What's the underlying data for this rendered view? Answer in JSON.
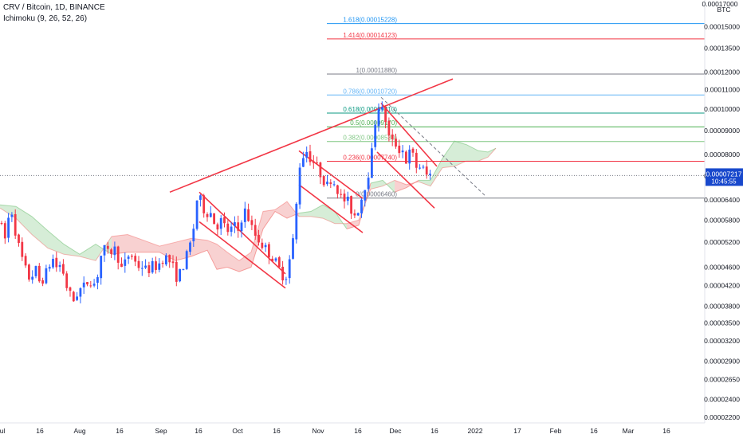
{
  "header": {
    "symbol": "CRV / Bitcoin, 1D, BINANCE",
    "indicator": "Ichimoku (9, 26, 52, 26)"
  },
  "price_scale": {
    "currency": "BTC",
    "top_label": "0.00017000",
    "current_price": "0.00007217",
    "countdown": "10:45:55",
    "current_price_color": "#1848cc"
  },
  "colors": {
    "up_candle": "#2962ff",
    "down_candle": "#f23645",
    "trendline": "#f23645",
    "cloud_bull": "#a5d6a7",
    "cloud_bear": "#ef9a9a"
  },
  "fib_levels": [
    {
      "label": "1.618(0.00015228)",
      "value": 0.00015228,
      "color": "#2196f3"
    },
    {
      "label": "1.414(0.00014123)",
      "value": 0.00014123,
      "color": "#f23645"
    },
    {
      "label": "1(0.00011880)",
      "value": 0.0001188,
      "color": "#787b86"
    },
    {
      "label": "0.786(0.00010720)",
      "value": 0.0001072,
      "color": "#64b5f6"
    },
    {
      "label": "0.618(0.00009810)",
      "value": 9.81e-05,
      "color": "#089981"
    },
    {
      "label": "0.5(0.00009170)",
      "value": 9.17e-05,
      "color": "#4caf50"
    },
    {
      "label": "0.382(0.00008530)",
      "value": 8.53e-05,
      "color": "#81c784"
    },
    {
      "label": "0.236(0.00007740)",
      "value": 7.74e-05,
      "color": "#f23645"
    },
    {
      "label": "0(0.00006460)",
      "value": 6.46e-05,
      "color": "#787b86"
    }
  ],
  "chart_data": {
    "type": "candlestick",
    "symbol": "CRV/BTC",
    "interval": "1D",
    "y_scale": "log",
    "x_ticks": [
      "ul",
      "16",
      "Aug",
      "16",
      "Sep",
      "16",
      "Oct",
      "16",
      "Nov",
      "16",
      "Dec",
      "16",
      "2022",
      "17",
      "Feb",
      "16",
      "Mar",
      "16"
    ],
    "y_ticks": [
      0.00015,
      0.000135,
      0.00012,
      0.00011,
      0.0001,
      9e-05,
      8e-05,
      7.2e-05,
      6.4e-05,
      5.8e-05,
      5.2e-05,
      4.6e-05,
      4.2e-05,
      3.8e-05,
      3.5e-05,
      3.2e-05,
      2.9e-05,
      2.65e-05,
      2.4e-05,
      2.2e-05
    ],
    "y_tick_labels": [
      "0.00015000",
      "0.00013500",
      "0.00012000",
      "0.00011000",
      "0.00010000",
      "0.00009000",
      "0.00008000",
      "0.00007200",
      "0.00006400",
      "0.00005800",
      "0.00005200",
      "0.00004600",
      "0.00004200",
      "0.00003800",
      "0.00003500",
      "0.00003200",
      "0.00002900",
      "0.00002650",
      "0.00002400",
      "0.00002200"
    ],
    "ylim": [
      2.14e-05,
      0.000171
    ],
    "price_path": [
      [
        0,
        5.75e-05
      ],
      [
        6,
        5.25e-05
      ],
      [
        10,
        5.8e-05
      ],
      [
        14,
        6.15e-05
      ],
      [
        20,
        5.4e-05
      ],
      [
        26,
        4.9e-05
      ],
      [
        32,
        4.55e-05
      ],
      [
        38,
        4.3e-05
      ],
      [
        44,
        4.6e-05
      ],
      [
        50,
        4.25e-05
      ],
      [
        56,
        4.4e-05
      ],
      [
        62,
        4.65e-05
      ],
      [
        67,
        4.8e-05
      ],
      [
        72,
        4.55e-05
      ],
      [
        77,
        4.7e-05
      ],
      [
        82,
        4.25e-05
      ],
      [
        87,
        4.05e-05
      ],
      [
        92,
        3.9e-05
      ],
      [
        97,
        4.05e-05
      ],
      [
        102,
        4.15e-05
      ],
      [
        107,
        4.2e-05
      ],
      [
        112,
        4.35e-05
      ],
      [
        117,
        4.2e-05
      ],
      [
        122,
        4.4e-05
      ],
      [
        127,
        4.9e-05
      ],
      [
        132,
        5.05e-05
      ],
      [
        137,
        4.85e-05
      ],
      [
        142,
        5.1e-05
      ],
      [
        147,
        4.9e-05
      ],
      [
        152,
        4.55e-05
      ],
      [
        157,
        4.7e-05
      ],
      [
        162,
        4.9e-05
      ],
      [
        167,
        4.85e-05
      ],
      [
        172,
        4.6e-05
      ],
      [
        177,
        4.65e-05
      ],
      [
        182,
        4.55e-05
      ],
      [
        187,
        4.55e-05
      ],
      [
        192,
        4.65e-05
      ],
      [
        197,
        4.6e-05
      ],
      [
        202,
        4.75e-05
      ],
      [
        207,
        4.85e-05
      ],
      [
        212,
        4.75e-05
      ],
      [
        217,
        4.6e-05
      ],
      [
        222,
        4.35e-05
      ],
      [
        228,
        4.55e-05
      ],
      [
        233,
        4.8e-05
      ],
      [
        238,
        5.1e-05
      ],
      [
        243,
        5.6e-05
      ],
      [
        248,
        6.6e-05
      ],
      [
        253,
        6.3e-05
      ],
      [
        258,
        5.95e-05
      ],
      [
        263,
        6.1e-05
      ],
      [
        268,
        5.75e-05
      ],
      [
        273,
        5.65e-05
      ],
      [
        278,
        5.8e-05
      ],
      [
        283,
        5.55e-05
      ],
      [
        288,
        5.45e-05
      ],
      [
        293,
        5.7e-05
      ],
      [
        298,
        5.45e-05
      ],
      [
        303,
        5.85e-05
      ],
      [
        308,
        6.1e-05
      ],
      [
        313,
        5.75e-05
      ],
      [
        318,
        5.45e-05
      ],
      [
        323,
        5.3e-05
      ],
      [
        328,
        5.15e-05
      ],
      [
        333,
        5.05e-05
      ],
      [
        338,
        4.9e-05
      ],
      [
        343,
        4.8e-05
      ],
      [
        348,
        4.65e-05
      ],
      [
        353,
        4.45e-05
      ],
      [
        358,
        4.35e-05
      ],
      [
        363,
        4.75e-05
      ],
      [
        368,
        5.3e-05
      ],
      [
        372,
        6.3e-05
      ],
      [
        376,
        7.6e-05
      ],
      [
        380,
        7.95e-05
      ],
      [
        385,
        8.15e-05
      ],
      [
        390,
        7.8e-05
      ],
      [
        395,
        7.65e-05
      ],
      [
        400,
        7.4e-05
      ],
      [
        405,
        7.1e-05
      ],
      [
        410,
        6.85e-05
      ],
      [
        415,
        7.1e-05
      ],
      [
        420,
        6.95e-05
      ],
      [
        425,
        6.65e-05
      ],
      [
        430,
        6.35e-05
      ],
      [
        435,
        6.45e-05
      ],
      [
        440,
        6.1e-05
      ],
      [
        445,
        5.95e-05
      ],
      [
        450,
        6.15e-05
      ],
      [
        455,
        6.6e-05
      ],
      [
        460,
        7.1e-05
      ],
      [
        464,
        7.5e-05
      ],
      [
        468,
        8.5e-05
      ],
      [
        472,
        9.85e-05
      ],
      [
        476,
        0.000103
      ],
      [
        480,
        9.85e-05
      ],
      [
        484,
        9.45e-05
      ],
      [
        488,
        8.7e-05
      ],
      [
        492,
        8.5e-05
      ],
      [
        496,
        8.45e-05
      ],
      [
        500,
        8.15e-05
      ],
      [
        504,
        8.4e-05
      ],
      [
        508,
        7.6e-05
      ],
      [
        512,
        8.05e-05
      ],
      [
        516,
        8.1e-05
      ],
      [
        520,
        7.8e-05
      ],
      [
        524,
        7.35e-05
      ],
      [
        528,
        7.65e-05
      ],
      [
        532,
        7.35e-05
      ],
      [
        536,
        7.2e-05
      ],
      [
        540,
        7.25e-05
      ],
      [
        542,
        7.217e-05
      ]
    ],
    "candle_spacing_px": 4.3,
    "cloud": [
      [
        0,
        6.25e-05,
        6.15e-05
      ],
      [
        20,
        6.2e-05,
        5.85e-05
      ],
      [
        40,
        5.9e-05,
        5.4e-05
      ],
      [
        60,
        5.5e-05,
        5.05e-05
      ],
      [
        80,
        5.15e-05,
        4.9e-05
      ],
      [
        100,
        4.9e-05,
        4.85e-05
      ],
      [
        120,
        5.15e-05,
        4.75e-05
      ],
      [
        140,
        4.9e-05,
        5.35e-05
      ],
      [
        160,
        4.95e-05,
        5.4e-05
      ],
      [
        180,
        4.95e-05,
        5.25e-05
      ],
      [
        200,
        4.95e-05,
        5.1e-05
      ],
      [
        220,
        4.75e-05,
        5.2e-05
      ],
      [
        240,
        4.85e-05,
        5.3e-05
      ],
      [
        260,
        5e-05,
        5.25e-05
      ],
      [
        272,
        4.55e-05,
        5.15e-05
      ],
      [
        285,
        4.6e-05,
        4.95e-05
      ],
      [
        300,
        4.5e-05,
        4.75e-05
      ],
      [
        315,
        4.6e-05,
        4.95e-05
      ],
      [
        330,
        5.55e-05,
        6.05e-05
      ],
      [
        345,
        6.05e-05,
        6.1e-05
      ],
      [
        360,
        5.85e-05,
        6.35e-05
      ],
      [
        375,
        6e-05,
        5.9e-05
      ],
      [
        390,
        6.05e-05,
        5.9e-05
      ],
      [
        405,
        6.25e-05,
        5.85e-05
      ],
      [
        420,
        6.05e-05,
        5.7e-05
      ],
      [
        435,
        5.55e-05,
        5.7e-05
      ],
      [
        450,
        5.65e-05,
        5.8e-05
      ],
      [
        465,
        6.95e-05,
        6.75e-05
      ],
      [
        480,
        7.05e-05,
        6.85e-05
      ],
      [
        495,
        6.65e-05,
        7.05e-05
      ],
      [
        510,
        6.8e-05,
        6.9e-05
      ],
      [
        525,
        7.05e-05,
        7e-05
      ],
      [
        540,
        7.05e-05,
        6.85e-05
      ],
      [
        555,
        7.85e-05,
        7.5e-05
      ],
      [
        570,
        8.55e-05,
        7.55e-05
      ],
      [
        585,
        8.4e-05,
        7.75e-05
      ],
      [
        600,
        8.15e-05,
        7.75e-05
      ],
      [
        612,
        8.1e-05,
        7.9e-05
      ],
      [
        622,
        8.25e-05,
        8.25e-05
      ]
    ],
    "trendlines": [
      {
        "x1": 213,
        "y1": 6.65e-05,
        "x2": 568,
        "y2": 0.000116,
        "color": "#f23645"
      },
      {
        "x1": 250,
        "y1": 6.65e-05,
        "x2": 358,
        "y2": 4.45e-05,
        "color": "#f23645"
      },
      {
        "x1": 250,
        "y1": 5.75e-05,
        "x2": 358,
        "y2": 4.15e-05,
        "color": "#f23645"
      },
      {
        "x1": 375,
        "y1": 8.15e-05,
        "x2": 455,
        "y2": 6.45e-05,
        "color": "#f23645"
      },
      {
        "x1": 375,
        "y1": 6.9e-05,
        "x2": 455,
        "y2": 5.45e-05,
        "color": "#f23645"
      },
      {
        "x1": 478,
        "y1": 0.000103,
        "x2": 548,
        "y2": 7.55e-05,
        "color": "#f23645"
      },
      {
        "x1": 473,
        "y1": 8.1e-05,
        "x2": 545,
        "y2": 6.15e-05,
        "color": "#f23645"
      },
      {
        "x1": 478,
        "y1": 0.000106,
        "x2": 608,
        "y2": 6.55e-05,
        "color": "#787b86",
        "dashed": true
      }
    ],
    "fib_start_x": 410,
    "fib_end_x": 884,
    "current_price": 7.217e-05
  }
}
